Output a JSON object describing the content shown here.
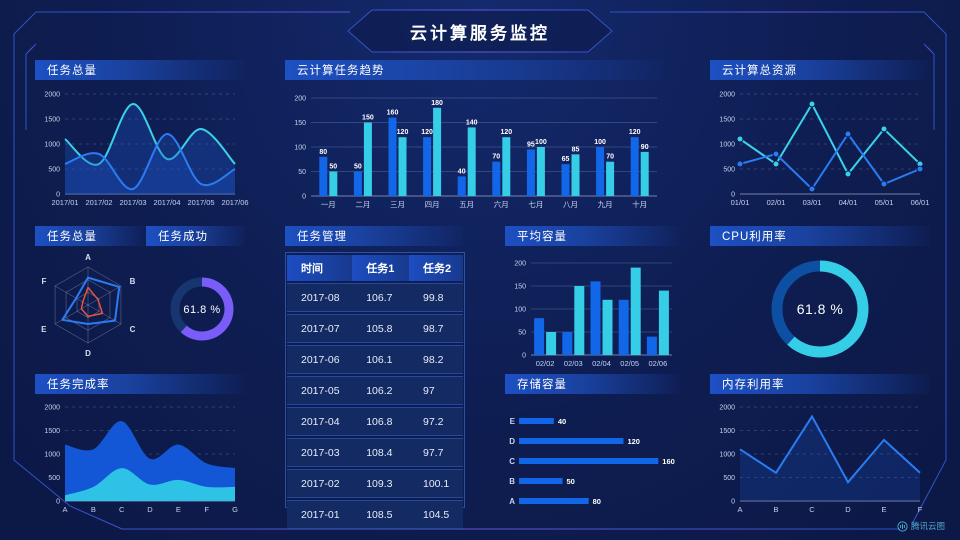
{
  "page": {
    "title": "云计算服务监控",
    "watermark": "腾讯云图"
  },
  "colors": {
    "background": "#0e1d51",
    "blue": "#1267e8",
    "cyan": "#36cee6",
    "lineBlue": "#2b7bf2",
    "lineCyan": "#3ad2e6",
    "purple": "#7a5cf8",
    "red": "#e8533c",
    "axisText": "#c8d3ee",
    "headerBlue": "#1d50c3",
    "frameLine": "#3350c8"
  },
  "panels": {
    "taskTotalTrend": {
      "title": "任务总量"
    },
    "cloudTaskTrend": {
      "title": "云计算任务趋势"
    },
    "cloudTotalResource": {
      "title": "云计算总资源"
    },
    "taskTotalRadar": {
      "title": "任务总量"
    },
    "taskSuccess": {
      "title": "任务成功"
    },
    "taskManage": {
      "title": "任务管理"
    },
    "avgCapacity": {
      "title": "平均容量"
    },
    "cpuUsage": {
      "title": "CPU利用率"
    },
    "taskCompletion": {
      "title": "任务完成率"
    },
    "storageCapacity": {
      "title": "存储容量"
    },
    "memUsage": {
      "title": "内存利用率"
    }
  },
  "chart_data": [
    {
      "id": "task-total-trend",
      "mount": "chart-taskTotalTrend",
      "type": "line",
      "title": "任务总量",
      "x": [
        "2017/01",
        "2017/02",
        "2017/03",
        "2017/04",
        "2017/05",
        "2017/06"
      ],
      "ylim": [
        0,
        2000
      ],
      "yticks": [
        0,
        500,
        1000,
        1500,
        2000
      ],
      "grid": "dashed",
      "smooth": true,
      "markers": false,
      "fill": "#1d55c8",
      "fillOpacity": 0.32,
      "series": [
        {
          "name": "cyan-series",
          "color": "lineCyan",
          "values": [
            1100,
            600,
            1800,
            700,
            1300,
            600
          ]
        },
        {
          "name": "blue-series",
          "color": "lineBlue",
          "values": [
            600,
            800,
            100,
            1200,
            200,
            500
          ]
        }
      ]
    },
    {
      "id": "cloud-task-trend",
      "mount": "chart-cloudTaskTrend",
      "type": "bar",
      "title": "云计算任务趋势",
      "categories": [
        "一月",
        "二月",
        "三月",
        "四月",
        "五月",
        "六月",
        "七月",
        "八月",
        "九月",
        "十月"
      ],
      "ylim": [
        0,
        200
      ],
      "yticks": [
        0,
        50,
        100,
        150,
        200
      ],
      "grid": "solid",
      "valueLabels": true,
      "series": [
        {
          "name": "blue-series",
          "color": "blue",
          "values": [
            80,
            50,
            160,
            120,
            40,
            70,
            95,
            65,
            100,
            120
          ]
        },
        {
          "name": "cyan-series",
          "color": "cyan",
          "values": [
            50,
            150,
            120,
            180,
            140,
            120,
            100,
            85,
            70,
            90
          ]
        }
      ]
    },
    {
      "id": "cloud-total-resource",
      "mount": "chart-cloudTotalResource",
      "type": "line",
      "title": "云计算总资源",
      "x": [
        "01/01",
        "02/01",
        "03/01",
        "04/01",
        "05/01",
        "06/01"
      ],
      "ylim": [
        0,
        2000
      ],
      "yticks": [
        0,
        500,
        1000,
        1500,
        2000
      ],
      "grid": "dashed",
      "smooth": false,
      "markers": true,
      "fillOpacity": 0,
      "series": [
        {
          "name": "cyan-series",
          "color": "lineCyan",
          "values": [
            1100,
            600,
            1800,
            400,
            1300,
            600
          ]
        },
        {
          "name": "blue-series",
          "color": "lineBlue",
          "values": [
            600,
            800,
            100,
            1200,
            200,
            500
          ]
        }
      ]
    },
    {
      "id": "task-total-radar",
      "mount": "chart-taskTotalRadar",
      "type": "radar",
      "title": "任务总量",
      "axes": [
        "A",
        "B",
        "C",
        "D",
        "E",
        "F"
      ],
      "max": 100,
      "levels": 3,
      "series": [
        {
          "name": "blue-series",
          "color": "lineBlue",
          "values": [
            72,
            95,
            82,
            50,
            78,
            36
          ]
        },
        {
          "name": "red-series",
          "color": "red",
          "values": [
            46,
            30,
            44,
            30,
            20,
            16
          ]
        }
      ]
    },
    {
      "id": "task-success",
      "mount": "chart-taskSuccess",
      "type": "donut",
      "title": "任务成功",
      "value": 61.8,
      "label": "61.8 %",
      "color": "purple",
      "track": "#17356f",
      "radius": 27,
      "strokeWidth": 9,
      "fontSize": 11
    },
    {
      "id": "task-manage",
      "mount": "chart-taskManage",
      "type": "table",
      "title": "任务管理",
      "columns": [
        "时间",
        "任务1",
        "任务2"
      ],
      "rows": [
        [
          "2017-08",
          "106.7",
          "99.8"
        ],
        [
          "2017-07",
          "105.8",
          "98.7"
        ],
        [
          "2017-06",
          "106.1",
          "98.2"
        ],
        [
          "2017-05",
          "106.2",
          "97"
        ],
        [
          "2017-04",
          "106.8",
          "97.2"
        ],
        [
          "2017-03",
          "108.4",
          "97.7"
        ],
        [
          "2017-02",
          "109.3",
          "100.1"
        ],
        [
          "2017-01",
          "108.5",
          "104.5"
        ]
      ]
    },
    {
      "id": "avg-capacity",
      "mount": "chart-avgCapacity",
      "type": "bar",
      "title": "平均容量",
      "categories": [
        "02/02",
        "02/03",
        "02/04",
        "02/05",
        "02/06"
      ],
      "ylim": [
        0,
        200
      ],
      "yticks": [
        0,
        50,
        100,
        150,
        200
      ],
      "grid": "solid",
      "valueLabels": false,
      "series": [
        {
          "name": "blue-series",
          "color": "blue",
          "values": [
            80,
            50,
            160,
            120,
            40
          ]
        },
        {
          "name": "cyan-series",
          "color": "cyan",
          "values": [
            50,
            150,
            120,
            190,
            140
          ]
        }
      ]
    },
    {
      "id": "cpu-usage",
      "mount": "chart-cpuUsage",
      "type": "donut",
      "title": "CPU利用率",
      "value": 61.8,
      "label": "61.8 %",
      "color": "cyan",
      "track": "#0d4fa3",
      "radius": 43,
      "strokeWidth": 11,
      "fontSize": 14
    },
    {
      "id": "task-completion",
      "mount": "chart-taskCompletion",
      "type": "area",
      "title": "任务完成率",
      "x": [
        "A",
        "B",
        "C",
        "D",
        "E",
        "F",
        "G"
      ],
      "ylim": [
        0,
        2000
      ],
      "yticks": [
        0,
        500,
        1000,
        1500,
        2000
      ],
      "grid": "dashed",
      "smooth": true,
      "series": [
        {
          "name": "blue-area",
          "color": "#1356d6",
          "values": [
            1200,
            1100,
            1700,
            900,
            1200,
            800,
            700
          ]
        },
        {
          "name": "cyan-area",
          "color": "#2ec3e6",
          "values": [
            120,
            300,
            700,
            350,
            450,
            300,
            300
          ]
        }
      ]
    },
    {
      "id": "storage-capacity",
      "mount": "chart-storageCapacity",
      "type": "hbar",
      "title": "存储容量",
      "categories": [
        "E",
        "D",
        "C",
        "B",
        "A"
      ],
      "values": [
        40,
        120,
        160,
        50,
        80
      ],
      "xmax": 170,
      "color": "blue",
      "valueLabels": true
    },
    {
      "id": "memory-usage",
      "mount": "chart-memUsage",
      "type": "line",
      "title": "内存利用率",
      "x": [
        "A",
        "B",
        "C",
        "D",
        "E",
        "F"
      ],
      "ylim": [
        0,
        2000
      ],
      "yticks": [
        0,
        500,
        1000,
        1500,
        2000
      ],
      "grid": "dashed",
      "smooth": false,
      "markers": false,
      "fill": "#1d55c8",
      "fillOpacity": 0.22,
      "series": [
        {
          "name": "blue-series",
          "color": "lineBlue",
          "values": [
            1100,
            600,
            1800,
            400,
            1300,
            600
          ]
        }
      ]
    }
  ]
}
